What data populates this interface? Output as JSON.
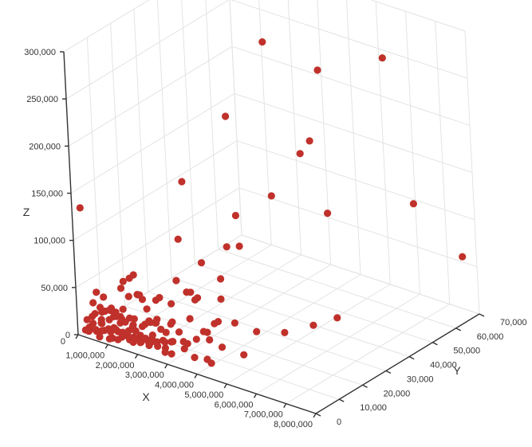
{
  "chart_data": {
    "type": "scatter",
    "projection": "3d",
    "title": "",
    "xlabel": "X",
    "ylabel": "Y",
    "zlabel": "Z",
    "xlim": [
      0,
      8000000
    ],
    "ylim": [
      0,
      70000
    ],
    "zlim": [
      0,
      300000
    ],
    "x_ticks": [
      "1,000,000",
      "2,000,000",
      "3,000,000",
      "4,000,000",
      "5,000,000",
      "6,000,000",
      "7,000,000",
      "8,000,000"
    ],
    "y_ticks": [
      "0",
      "10,000",
      "20,000",
      "30,000",
      "40,000",
      "50,000",
      "60,000",
      "70,000"
    ],
    "z_ticks": [
      "0",
      "50,000",
      "100,000",
      "150,000",
      "200,000",
      "250,000",
      "300,000"
    ],
    "x_origin_label": "0",
    "grid": true,
    "legend": "none",
    "marker_color": "#c0312b",
    "series": [
      {
        "values": [
          [
            100000,
            2000,
            3000
          ],
          [
            150000,
            3000,
            5000
          ],
          [
            200000,
            4000,
            8000
          ],
          [
            250000,
            1500,
            4000
          ],
          [
            300000,
            2500,
            6000
          ],
          [
            350000,
            3500,
            2000
          ],
          [
            400000,
            5000,
            9000
          ],
          [
            450000,
            2000,
            7000
          ],
          [
            500000,
            4000,
            11000
          ],
          [
            550000,
            3000,
            5000
          ],
          [
            600000,
            6000,
            13000
          ],
          [
            650000,
            1000,
            3000
          ],
          [
            700000,
            2500,
            8000
          ],
          [
            750000,
            4500,
            4000
          ],
          [
            800000,
            3000,
            10000
          ],
          [
            850000,
            5500,
            6000
          ],
          [
            900000,
            2000,
            2000
          ],
          [
            950000,
            3500,
            12000
          ],
          [
            1000000,
            4500,
            7000
          ],
          [
            1050000,
            1500,
            5000
          ],
          [
            1100000,
            6500,
            15000
          ],
          [
            1150000,
            2500,
            3000
          ],
          [
            1200000,
            4000,
            9000
          ],
          [
            1250000,
            3000,
            6000
          ],
          [
            1300000,
            5000,
            4000
          ],
          [
            1350000,
            2000,
            11000
          ],
          [
            1400000,
            7000,
            8000
          ],
          [
            1450000,
            3500,
            14000
          ],
          [
            1500000,
            4500,
            2000
          ],
          [
            1550000,
            2500,
            7000
          ],
          [
            1600000,
            5500,
            5000
          ],
          [
            1650000,
            3000,
            10000
          ],
          [
            1700000,
            6000,
            3000
          ],
          [
            1750000,
            1500,
            8000
          ],
          [
            1800000,
            4000,
            12000
          ],
          [
            1850000,
            3500,
            6000
          ],
          [
            1900000,
            7500,
            4000
          ],
          [
            1950000,
            2000,
            9000
          ],
          [
            2000000,
            5000,
            2000
          ],
          [
            2050000,
            3000,
            13000
          ],
          [
            2100000,
            4500,
            7000
          ],
          [
            2150000,
            6500,
            5000
          ],
          [
            2200000,
            2500,
            11000
          ],
          [
            2250000,
            5500,
            3000
          ],
          [
            300000,
            8000,
            16000
          ],
          [
            600000,
            9000,
            12000
          ],
          [
            900000,
            7000,
            18000
          ],
          [
            1200000,
            8500,
            10000
          ],
          [
            500000,
            10000,
            14000
          ],
          [
            800000,
            6000,
            19000
          ],
          [
            1100000,
            9500,
            6000
          ],
          [
            1400000,
            11000,
            9000
          ],
          [
            250000,
            1000,
            17000
          ],
          [
            700000,
            1500,
            21000
          ],
          [
            450000,
            2000,
            24000
          ],
          [
            650000,
            2500,
            27000
          ],
          [
            1000000,
            3000,
            25000
          ],
          [
            550000,
            3000,
            30000
          ],
          [
            350000,
            2000,
            20000
          ],
          [
            1300000,
            2000,
            23000
          ],
          [
            850000,
            4000,
            31000
          ],
          [
            1150000,
            4500,
            22000
          ],
          [
            750000,
            5000,
            26000
          ],
          [
            1600000,
            3000,
            18000
          ],
          [
            400000,
            2000,
            35000
          ],
          [
            950000,
            2000,
            33000
          ],
          [
            1500000,
            3500,
            28000
          ],
          [
            1800000,
            5000,
            20000
          ],
          [
            200000,
            6000,
            38000
          ],
          [
            600000,
            4000,
            40000
          ],
          [
            1250000,
            4000,
            34000
          ],
          [
            1700000,
            3000,
            30000
          ],
          [
            2000000,
            6000,
            25000
          ],
          [
            2300000,
            3000,
            19000
          ],
          [
            2500000,
            2000,
            15000
          ],
          [
            2400000,
            6000,
            10000
          ],
          [
            2700000,
            3000,
            5000
          ],
          [
            2600000,
            5000,
            22000
          ],
          [
            2800000,
            2000,
            12000
          ],
          [
            3000000,
            2000,
            8000
          ],
          [
            2900000,
            4000,
            17000
          ],
          [
            2300000,
            8000,
            4000
          ],
          [
            2600000,
            7000,
            9000
          ],
          [
            3200000,
            5000,
            11000
          ],
          [
            2100000,
            9000,
            14000
          ],
          [
            1900000,
            10000,
            21000
          ],
          [
            2200000,
            12000,
            16000
          ],
          [
            2500000,
            9000,
            26000
          ],
          [
            1700000,
            12000,
            12000
          ],
          [
            2800000,
            8000,
            20000
          ],
          [
            1500000,
            14000,
            7000
          ],
          [
            3100000,
            6000,
            16000
          ],
          [
            1300000,
            6000,
            45000
          ],
          [
            1600000,
            8000,
            42000
          ],
          [
            1900000,
            6000,
            38000
          ],
          [
            800000,
            9000,
            44000
          ],
          [
            1100000,
            12000,
            36000
          ],
          [
            2200000,
            3000,
            33000
          ],
          [
            2000000,
            15000,
            31000
          ],
          [
            1400000,
            16000,
            27000
          ],
          [
            3400000,
            4000,
            20000
          ],
          [
            3700000,
            3000,
            10000
          ],
          [
            4100000,
            5000,
            5000
          ],
          [
            3300000,
            9000,
            16000
          ],
          [
            3800000,
            7000,
            3000
          ],
          [
            3500000,
            12000,
            13000
          ],
          [
            2700000,
            14000,
            24000
          ],
          [
            3600000,
            10000,
            25000
          ],
          [
            2900000,
            17000,
            8000
          ],
          [
            4000000,
            11000,
            12000
          ],
          [
            3200000,
            18000,
            18000
          ],
          [
            4400000,
            15000,
            2000
          ],
          [
            2500000,
            20000,
            35000
          ],
          [
            3000000,
            22000,
            12000
          ],
          [
            2300000,
            18000,
            42000
          ],
          [
            3900000,
            18000,
            26000
          ],
          [
            1800000,
            20000,
            46000
          ],
          [
            2600000,
            16000,
            48000
          ],
          [
            2000000,
            25000,
            20000
          ],
          [
            4300000,
            22000,
            15000
          ],
          [
            2000000,
            2000,
            60000
          ],
          [
            2600000,
            3000,
            62000
          ],
          [
            1300000,
            4000,
            64000
          ],
          [
            3300000,
            20000,
            42000
          ],
          [
            4600000,
            30000,
            5000
          ],
          [
            5100000,
            36000,
            9000
          ],
          [
            5600000,
            40000,
            16000
          ],
          [
            1500000,
            6000,
            70000
          ],
          [
            200000,
            1000,
            135000
          ],
          [
            1600000,
            3000,
            72000
          ],
          [
            2500000,
            30000,
            40000
          ],
          [
            2200000,
            26000,
            60000
          ],
          [
            2600000,
            32000,
            72000
          ],
          [
            2100000,
            18000,
            96000
          ],
          [
            3200000,
            30000,
            82000
          ],
          [
            2300000,
            40000,
            90000
          ],
          [
            2000000,
            22000,
            150000
          ],
          [
            2900000,
            48000,
            105000
          ],
          [
            3800000,
            60000,
            78000
          ],
          [
            2700000,
            33000,
            210000
          ],
          [
            4200000,
            45000,
            168000
          ],
          [
            4300000,
            48000,
            178000
          ],
          [
            4200000,
            54000,
            243000
          ],
          [
            3100000,
            45000,
            275000
          ],
          [
            5700000,
            63000,
            258000
          ],
          [
            6100000,
            68000,
            100000
          ],
          [
            7600000,
            69000,
            58000
          ]
        ]
      }
    ]
  }
}
